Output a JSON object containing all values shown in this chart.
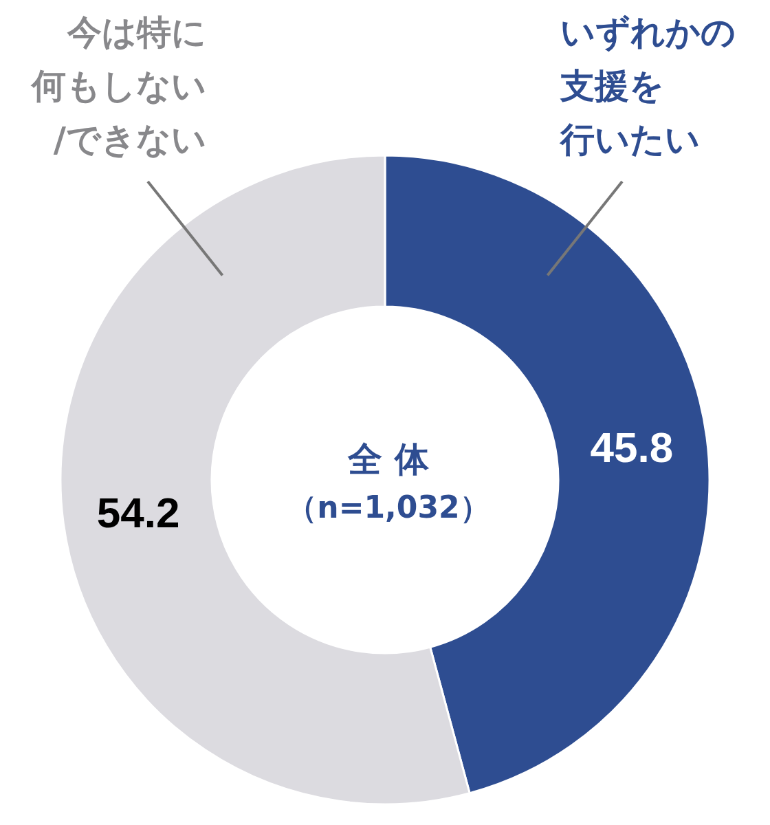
{
  "chart_data": {
    "type": "donut",
    "title": "全 体",
    "subtitle": "（n=1,032）",
    "categories": [
      "いずれかの支援を行いたい",
      "今は特に何もしない/できない"
    ],
    "values": [
      45.8,
      54.2
    ],
    "colors": [
      "#2e4d91",
      "#dcdbe0"
    ],
    "data_labels": true,
    "legend": false
  }
}
